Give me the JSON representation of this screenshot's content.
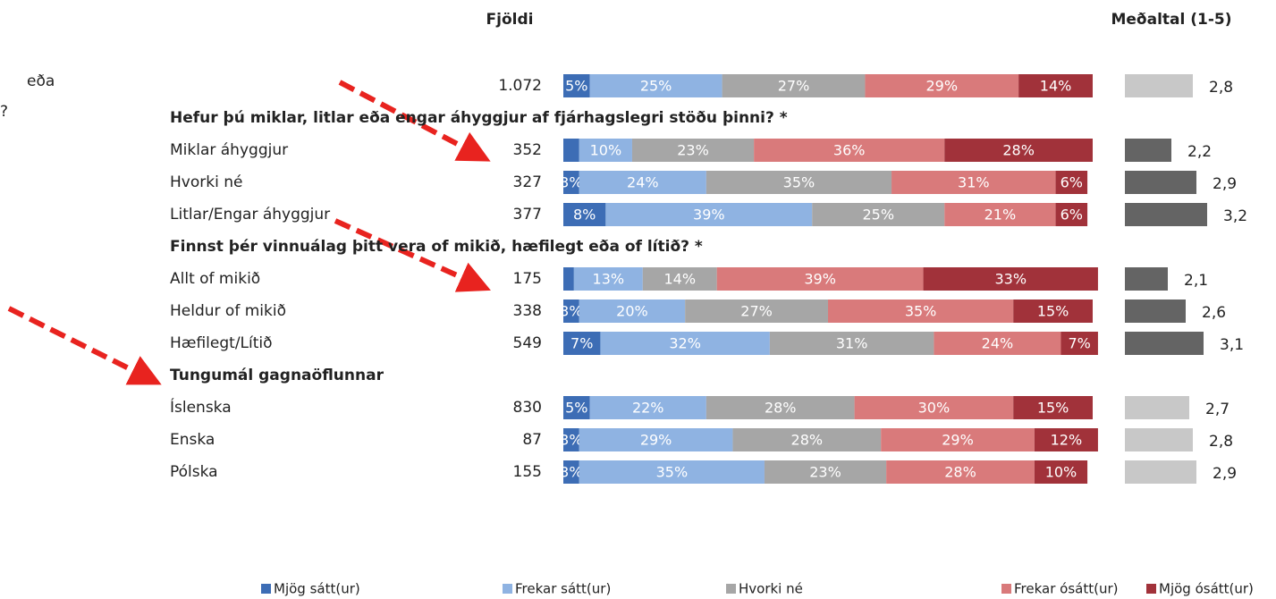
{
  "chart_data": {
    "type": "stacked-barh",
    "count_header": "Fjöldi",
    "mean_header": "Meðaltal (1-5)",
    "cropped_text": [
      "eða",
      "?"
    ],
    "series": [
      {
        "name": "Mjög sátt(ur)",
        "color": "#3d6db5"
      },
      {
        "name": "Frekar sátt(ur)",
        "color": "#8fb3e2"
      },
      {
        "name": "Hvorki né",
        "color": "#a6a6a6"
      },
      {
        "name": "Frekar ósátt(ur)",
        "color": "#d97a7b"
      },
      {
        "name": "Mjög ósátt(ur)",
        "color": "#a1323a"
      }
    ],
    "groups": [
      {
        "mean_color": "#c8c8c8",
        "rows": [
          {
            "count": "1.072",
            "values": [
              5,
              25,
              27,
              29,
              14
            ],
            "value_labels": [
              "5%",
              "25%",
              "27%",
              "29%",
              "14%"
            ],
            "mean": 2.8,
            "mean_label": "2,8"
          }
        ]
      },
      {
        "title": "Hefur þú miklar, litlar eða engar áhyggjur af fjárhagslegri stöðu þinni? *",
        "mean_color": "#646464",
        "rows": [
          {
            "label": "Miklar áhyggjur",
            "count": "352",
            "values": [
              3,
              10,
              23,
              36,
              28
            ],
            "value_labels": [
              null,
              "10%",
              "23%",
              "36%",
              "28%"
            ],
            "mean": 2.2,
            "mean_label": "2,2"
          },
          {
            "label": "Hvorki né",
            "count": "327",
            "values": [
              3,
              24,
              35,
              31,
              6
            ],
            "value_labels": [
              "3%",
              "24%",
              "35%",
              "31%",
              "6%"
            ],
            "mean": 2.9,
            "mean_label": "2,9"
          },
          {
            "label": "Litlar/Engar áhyggjur",
            "count": "377",
            "values": [
              8,
              39,
              25,
              21,
              6
            ],
            "value_labels": [
              "8%",
              "39%",
              "25%",
              "21%",
              "6%"
            ],
            "mean": 3.2,
            "mean_label": "3,2"
          }
        ]
      },
      {
        "title": "Finnst þér vinnuálag þitt vera of mikið, hæfilegt eða of lítið? *",
        "mean_color": "#646464",
        "rows": [
          {
            "label": "Allt of mikið",
            "count": "175",
            "values": [
              2,
              13,
              14,
              39,
              33
            ],
            "value_labels": [
              null,
              "13%",
              "14%",
              "39%",
              "33%"
            ],
            "mean": 2.1,
            "mean_label": "2,1"
          },
          {
            "label": "Heldur of mikið",
            "count": "338",
            "values": [
              3,
              20,
              27,
              35,
              15
            ],
            "value_labels": [
              "3%",
              "20%",
              "27%",
              "35%",
              "15%"
            ],
            "mean": 2.6,
            "mean_label": "2,6"
          },
          {
            "label": "Hæfilegt/Lítið",
            "count": "549",
            "values": [
              7,
              32,
              31,
              24,
              7
            ],
            "value_labels": [
              "7%",
              "32%",
              "31%",
              "24%",
              "7%"
            ],
            "mean": 3.1,
            "mean_label": "3,1"
          }
        ]
      },
      {
        "title": "Tungumál gagnaöflunnar",
        "mean_color": "#c8c8c8",
        "rows": [
          {
            "label": "Íslenska",
            "count": "830",
            "values": [
              5,
              22,
              28,
              30,
              15
            ],
            "value_labels": [
              "5%",
              "22%",
              "28%",
              "30%",
              "15%"
            ],
            "mean": 2.7,
            "mean_label": "2,7"
          },
          {
            "label": "Enska",
            "count": "87",
            "values": [
              3,
              29,
              28,
              29,
              12
            ],
            "value_labels": [
              "3%",
              "29%",
              "28%",
              "29%",
              "12%"
            ],
            "mean": 2.8,
            "mean_label": "2,8"
          },
          {
            "label": "Pólska",
            "count": "155",
            "values": [
              3,
              35,
              23,
              28,
              10
            ],
            "value_labels": [
              "3%",
              "35%",
              "23%",
              "28%",
              "10%"
            ],
            "mean": 2.9,
            "mean_label": "2,9"
          }
        ]
      }
    ]
  }
}
